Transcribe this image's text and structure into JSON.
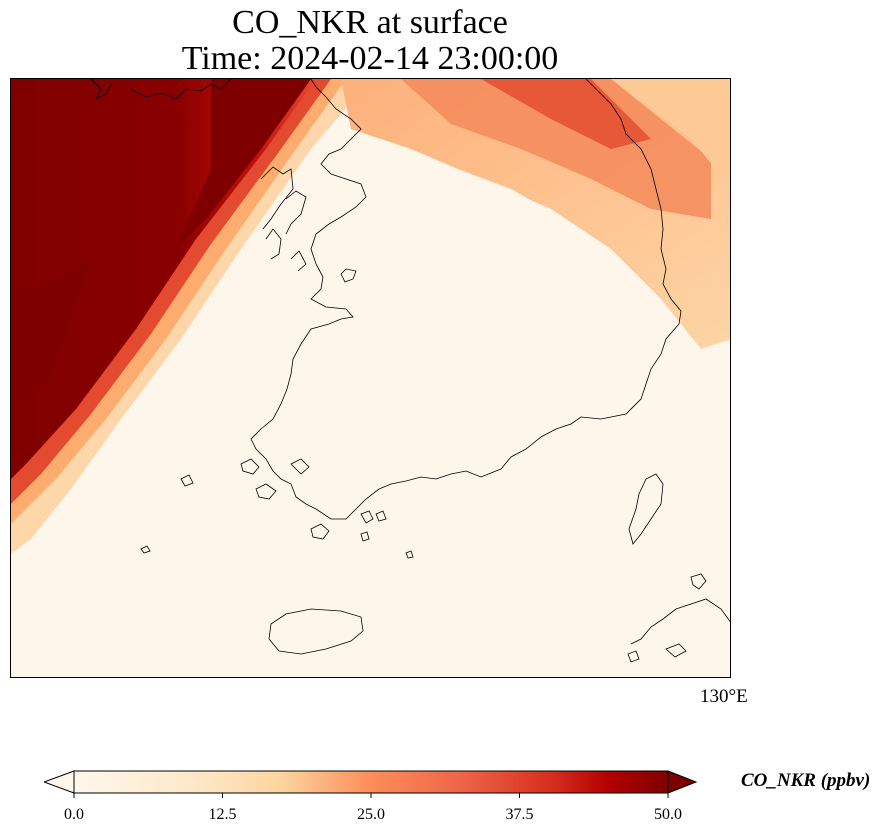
{
  "title_line1": "CO_NKR at surface",
  "title_line2": "Time: 2024-02-14 23:00:00",
  "longitude_label": "130°E",
  "colorbar": {
    "label": "CO_NKR (ppbv)",
    "min": 0.0,
    "max": 50.0,
    "extend": "both",
    "ticks": [
      "0.0",
      "12.5",
      "25.0",
      "37.5",
      "50.0"
    ],
    "colors": [
      "#fff7ec",
      "#fdd49e",
      "#fc8d59",
      "#d7301f",
      "#b30000",
      "#7f0000"
    ]
  }
}
